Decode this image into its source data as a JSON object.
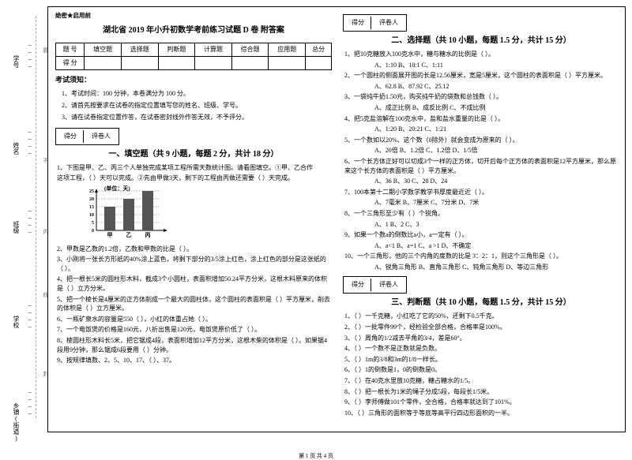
{
  "secret": "绝密★启用前",
  "title": "湖北省 2019 年小升初数学考前练习试题 D 卷 附答案",
  "side": {
    "l1": "乡镇(街道)",
    "l2": "学校",
    "l3": "班级",
    "l4": "姓名",
    "l5": "学号",
    "b1": "封",
    "b2": "线",
    "b3": "内",
    "b4": "不",
    "b5": "题"
  },
  "scoreTable": {
    "h1": "题  号",
    "h2": "填空题",
    "h3": "选择题",
    "h4": "判断题",
    "h5": "计算题",
    "h6": "综合题",
    "h7": "应用题",
    "h8": "总分",
    "r1": "得  分"
  },
  "noticeHead": "考试须知：",
  "notice1": "1、考试时间：100 分钟，本卷满分为 100 分。",
  "notice2": "2、请首先按要求在试卷的指定位置填写您的姓名、班级、学号。",
  "notice3": "3、请在试卷指定位置作答，在试卷密封线外作答无效，不予评分。",
  "sectionBox": {
    "c1": "得分",
    "c2": "评卷人"
  },
  "sec1Title": "一、填空题（共 9 小题，每题 2 分，共计 18 分）",
  "sec2Title": "二、选择题（共 10 小题，每题 1.5 分，共计 15 分）",
  "sec3Title": "三、判断题（共 10 小题，每题 1.5 分，共计 15 分）",
  "q1_1": "1、下图是甲、乙、丙三个人单独完成某项工程所需天数统计图。请看图填空。①甲、乙合作",
  "q1_1b": "这项工程，（    ）天可以完成。②先由甲做3天，剩下的工程由丙做还需要（    ）天完成。",
  "chart": {
    "ylabel": "(单位：天)",
    "ticks": [
      "25",
      "20",
      "15",
      "10",
      "5",
      "0"
    ],
    "xlabels": [
      "甲",
      "乙",
      "丙"
    ],
    "values": [
      15,
      20,
      25
    ],
    "ymax": 25,
    "bar_color": "#555555",
    "grid_color": "#000000",
    "width": 110,
    "height": 62
  },
  "q1_2": "2、甲数是乙数的1.2倍，乙数和甲数的比是（    ）。",
  "q1_3": "3、小刚将一张长方形纸的40%涂上蓝色，将剩下部分的3/5涂上红色，涂上红色的部分是这张纸的（    ）。",
  "q1_4": "4、把一根长5米的圆柱形木料，截成3个小圆柱，表面积增加50.24平方分米，这根木料原来的体积是（    ）立方分米。",
  "q1_5": "5、把一个棱长是4厘米的正方体削成一个最大的圆柱体，这个圆柱的表面积是（    ）平方厘米，削去的体积是（    ）立方厘米。",
  "q1_6": "6、一瓶矿泉水的容量是550（  ），小红的体重占她（  ）。",
  "q1_7": "7、一个电饭煲的价格是160元，八折出售是120元，电饭煲原价低了（    ）。",
  "q1_8": "8、棱圆柱形木料长5米，把它锯成4段，表面积增加12平方分米，这根木柴的体积是（    ）。如果锯4段用9分钟，那么锯成6段要用（    ）分钟。",
  "q1_9": "9、按规律填数、2、5、10、17、（    ）、37。",
  "q2_1": "1、把10克糖放入100克水中，糖与糖水的比例是（    ）。",
  "q2_1o": "A、1:10     B、10:1     C、1:11",
  "q2_2": "2、一个圆柱的侧面展开图的长是12.56厘米，宽是5厘米，这个圆柱的表面积是（    ）平方厘米。",
  "q2_2o": "A、62.8     B、87.92     C、25.12",
  "q2_3": "3、一袋纯牛奶1.50元，购买纯牛奶的袋数和总钱数（    ）。",
  "q2_3o": "A、成正比例     B、成反比例     C、不成比例",
  "q2_4": "4、把5克盐溶解在100克水中，盐和盐水重量的比是（    ）。",
  "q2_4o": "A、1:20     B、20:21     C、1:21",
  "q2_5": "5、一个数如以20%、这个数（0除外）就会变成为原来的（    ）。",
  "q2_5o": "A、20倍     B、1.2倍     C、1.2倍     D、1/5倍",
  "q2_6": "6、一个长方体正好可以切成3个一样的正方体，切开后每个正方体的表面积是12平方厘米，那么原来这个长方体的表面积是（    ）平方厘米。",
  "q2_6o": "A、36     B、30     C、28     D、24",
  "q2_7": "7、100本第十二期小学数学教学书厚度最近近（    ）。",
  "q2_7o": "A、7毫米     B、7厘米     C、7分米     D、7米",
  "q2_8": "8、一个三角形至少有（    ）个锐角。",
  "q2_8o": "A、1     B、2     C、3",
  "q2_9": "9、如果一个数a的倒数比a小，a一定有（    ）。",
  "q2_9o": "A、a<1     B、a=1     C、a >1     D、不确定",
  "q2_10": "10、一个三角形，他的三个内角的度数的比是 3：2：1，则这个三角形是（    ）。",
  "q2_10o": "A、锐角三角形     B、直角三角形     C、钝角三角形     D、等边三角形",
  "q3_1": "1、（    ）一千克糖，小红吃了它的50%，还剩下0.5千克。",
  "q3_2": "2、（    ）一批零件99个，经检验全部合格，合格率是100%。",
  "q3_3": "3、（    ）周角的1/2减去平角的3/4，差是60°。",
  "q3_4": "4、（    ）一个数不是正数就是负数。",
  "q3_5": "5、（    ）1m的3/8和3m的1/8一样长。",
  "q3_6": "6、（    ）1的倒数是1，0的倒数是0。",
  "q3_7": "7、（    ）在40克水里放10克糖，糖占糖水的1/5。",
  "q3_8": "8、（    ）把一根长为1米的绳子分成5段，每段长1/5米。",
  "q3_9": "9、（    ）李师傅做101个零件，全合格，合格率就达到了101%。",
  "q3_10": "10、（    ）三角形的面积等于等底等高平行四边形面积的一半。",
  "footer": "第 1 页 共 4 页"
}
